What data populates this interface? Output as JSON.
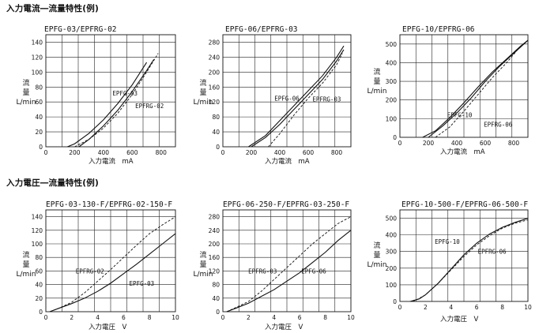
{
  "sections": [
    {
      "title": "入力電流―流量特性(例)"
    },
    {
      "title": "入力電圧―流量特性(例)"
    }
  ],
  "ylabel": {
    "line1": "流",
    "line2": "量",
    "unit": "L/min"
  },
  "chart_data": [
    {
      "type": "line",
      "title": "EPFG-03/EPFRG-02",
      "xlabel": "入力電流　mA",
      "xlim": [
        0,
        900
      ],
      "ylim": [
        0,
        150
      ],
      "xticks": [
        0,
        200,
        400,
        600,
        800
      ],
      "yticks": [
        0,
        20,
        40,
        60,
        80,
        100,
        120,
        140
      ],
      "series": [
        {
          "name": "EPFG-03",
          "style": "solid",
          "x": [
            150,
            200,
            300,
            400,
            500,
            600,
            700
          ],
          "y": [
            0,
            4,
            18,
            36,
            58,
            83,
            113
          ]
        },
        {
          "name": "EPFG-03",
          "style": "solid",
          "x": [
            230,
            300,
            400,
            500,
            600,
            700,
            750
          ],
          "y": [
            0,
            10,
            28,
            49,
            74,
            102,
            117
          ]
        },
        {
          "name": "EPFRG-02",
          "style": "dashed",
          "x": [
            200,
            300,
            400,
            500,
            600,
            700,
            780
          ],
          "y": [
            0,
            10,
            25,
            45,
            70,
            100,
            125
          ]
        }
      ],
      "annotations": [
        {
          "text": "EPFG-03",
          "x": 550,
          "y": 72
        },
        {
          "text": "EPFRG-02",
          "x": 720,
          "y": 55
        }
      ]
    },
    {
      "type": "line",
      "title": "EPFG-06/EPFRG-03",
      "xlabel": "入力電流　mA",
      "xlim": [
        0,
        900
      ],
      "ylim": [
        0,
        300
      ],
      "xticks": [
        0,
        200,
        400,
        600,
        800
      ],
      "yticks": [
        0,
        40,
        80,
        120,
        160,
        200,
        240,
        280
      ],
      "series": [
        {
          "name": "EPFG-06",
          "style": "solid",
          "x": [
            180,
            300,
            400,
            500,
            600,
            700,
            800,
            850
          ],
          "y": [
            0,
            30,
            70,
            110,
            150,
            190,
            240,
            270
          ]
        },
        {
          "name": "EPFG-06",
          "style": "solid",
          "x": [
            200,
            300,
            400,
            500,
            600,
            700,
            800,
            850
          ],
          "y": [
            0,
            25,
            60,
            100,
            140,
            180,
            230,
            260
          ]
        },
        {
          "name": "EPFRG-03",
          "style": "dashed",
          "x": [
            320,
            400,
            500,
            600,
            700,
            800,
            840
          ],
          "y": [
            0,
            35,
            85,
            130,
            170,
            220,
            250
          ]
        }
      ],
      "annotations": [
        {
          "text": "EPFG-06",
          "x": 450,
          "y": 130
        },
        {
          "text": "EPFRG-03",
          "x": 730,
          "y": 128
        }
      ]
    },
    {
      "type": "line",
      "title": "EPFG-10/EPFRG-06",
      "xlabel": "入力電流　mA",
      "xlim": [
        0,
        900
      ],
      "ylim": [
        0,
        550
      ],
      "xticks": [
        0,
        200,
        400,
        600,
        800
      ],
      "yticks": [
        0,
        100,
        200,
        300,
        400,
        500
      ],
      "series": [
        {
          "name": "EPFG-10",
          "style": "solid",
          "x": [
            160,
            250,
            350,
            450,
            550,
            650,
            750,
            850,
            900
          ],
          "y": [
            0,
            35,
            105,
            185,
            270,
            350,
            420,
            490,
            520
          ]
        },
        {
          "name": "EPFG-10",
          "style": "solid",
          "x": [
            200,
            300,
            400,
            500,
            600,
            700,
            800,
            900
          ],
          "y": [
            0,
            60,
            130,
            210,
            300,
            380,
            450,
            520
          ]
        },
        {
          "name": "EPFRG-06",
          "style": "dashed",
          "x": [
            250,
            350,
            450,
            550,
            650,
            750,
            850
          ],
          "y": [
            0,
            55,
            140,
            230,
            320,
            400,
            490
          ]
        }
      ],
      "annotations": [
        {
          "text": "EPFG-10",
          "x": 420,
          "y": 120
        },
        {
          "text": "EPFRG-06",
          "x": 690,
          "y": 70
        }
      ]
    },
    {
      "type": "line",
      "title": "EPFG-03-130-F/EPFRG-02-150-F",
      "xlabel": "入力電圧　V",
      "xlim": [
        0,
        10
      ],
      "ylim": [
        0,
        150
      ],
      "xticks": [
        0,
        2,
        4,
        6,
        8,
        10
      ],
      "yticks": [
        0,
        20,
        40,
        60,
        80,
        100,
        120,
        140
      ],
      "series": [
        {
          "name": "EPFG-03",
          "style": "solid",
          "x": [
            0.3,
            1,
            2,
            3,
            4,
            5,
            6,
            7,
            8,
            9,
            10
          ],
          "y": [
            0,
            5,
            12,
            20,
            30,
            42,
            56,
            70,
            85,
            100,
            115
          ]
        },
        {
          "name": "EPFRG-02",
          "style": "dashed",
          "x": [
            0.3,
            1,
            2,
            3,
            4,
            5,
            6,
            7,
            8,
            9,
            10
          ],
          "y": [
            0,
            5,
            14,
            28,
            45,
            62,
            80,
            98,
            115,
            128,
            140
          ]
        }
      ],
      "annotations": [
        {
          "text": "EPFRG-02",
          "x": 3.4,
          "y": 60
        },
        {
          "text": "EPFG-03",
          "x": 7.4,
          "y": 42
        }
      ]
    },
    {
      "type": "line",
      "title": "EPFG-06-250-F/EPFRG-03-250-F",
      "xlabel": "入力電圧　V",
      "xlim": [
        0,
        10
      ],
      "ylim": [
        0,
        300
      ],
      "xticks": [
        0,
        2,
        4,
        6,
        8,
        10
      ],
      "yticks": [
        0,
        40,
        80,
        120,
        160,
        200,
        240,
        280
      ],
      "series": [
        {
          "name": "EPFG-06",
          "style": "solid",
          "x": [
            0.3,
            1,
            2,
            3,
            4,
            5,
            6,
            7,
            8,
            9,
            10
          ],
          "y": [
            0,
            10,
            25,
            45,
            65,
            90,
            115,
            145,
            175,
            210,
            240
          ]
        },
        {
          "name": "EPFRG-03",
          "style": "dashed",
          "x": [
            0.3,
            1,
            2,
            3,
            4,
            5,
            6,
            7,
            8,
            9,
            10
          ],
          "y": [
            0,
            12,
            30,
            60,
            95,
            130,
            165,
            200,
            230,
            260,
            280
          ]
        }
      ],
      "annotations": [
        {
          "text": "EPFRG-03",
          "x": 3.1,
          "y": 120
        },
        {
          "text": "EPFG-06",
          "x": 7.1,
          "y": 120
        }
      ]
    },
    {
      "type": "line",
      "title": "EPFG-10-500-F/EPFRG-06-500-F",
      "xlabel": "入力電圧　V",
      "xlim": [
        0,
        10
      ],
      "ylim": [
        0,
        550
      ],
      "xticks": [
        0,
        2,
        4,
        6,
        8,
        10
      ],
      "yticks": [
        0,
        100,
        200,
        300,
        400,
        500
      ],
      "series": [
        {
          "name": "EPFG-10",
          "style": "solid",
          "x": [
            0.8,
            1.5,
            2,
            3,
            4,
            5,
            6,
            7,
            8,
            9,
            10
          ],
          "y": [
            0,
            15,
            40,
            110,
            195,
            280,
            350,
            405,
            445,
            475,
            500
          ]
        },
        {
          "name": "EPFRG-06",
          "style": "dashed",
          "x": [
            1,
            1.5,
            2,
            3,
            4,
            5,
            6,
            7,
            8,
            9,
            10
          ],
          "y": [
            0,
            18,
            40,
            110,
            190,
            270,
            340,
            395,
            440,
            470,
            490
          ]
        }
      ],
      "annotations": [
        {
          "text": "EPFG-10",
          "x": 3.7,
          "y": 360
        },
        {
          "text": "EPFRG-06",
          "x": 7.2,
          "y": 300
        }
      ]
    }
  ]
}
